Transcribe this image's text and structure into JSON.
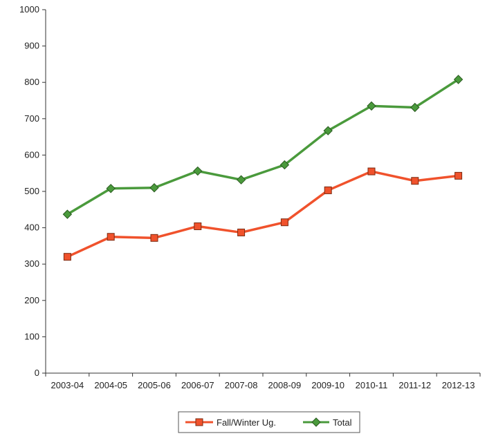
{
  "chart_data": {
    "type": "line",
    "title": "",
    "xlabel": "",
    "ylabel": "",
    "categories": [
      "2003-04",
      "2004-05",
      "2005-06",
      "2006-07",
      "2007-08",
      "2008-09",
      "2009-10",
      "2010-11",
      "2011-12",
      "2012-13"
    ],
    "ylim": [
      0,
      1000
    ],
    "yticks": [
      "0",
      "100",
      "200",
      "300",
      "400",
      "500",
      "600",
      "700",
      "800",
      "900",
      "1000"
    ],
    "grid": false,
    "legend_position": "bottom",
    "series": [
      {
        "name": "Fall/Winter Ug.",
        "color": "#f0522c",
        "marker": "square",
        "values": [
          320,
          375,
          372,
          404,
          387,
          415,
          503,
          555,
          529,
          543
        ]
      },
      {
        "name": "Total",
        "color": "#4a9a3c",
        "marker": "diamond",
        "values": [
          437,
          508,
          510,
          556,
          532,
          573,
          667,
          735,
          731,
          808
        ]
      }
    ]
  }
}
